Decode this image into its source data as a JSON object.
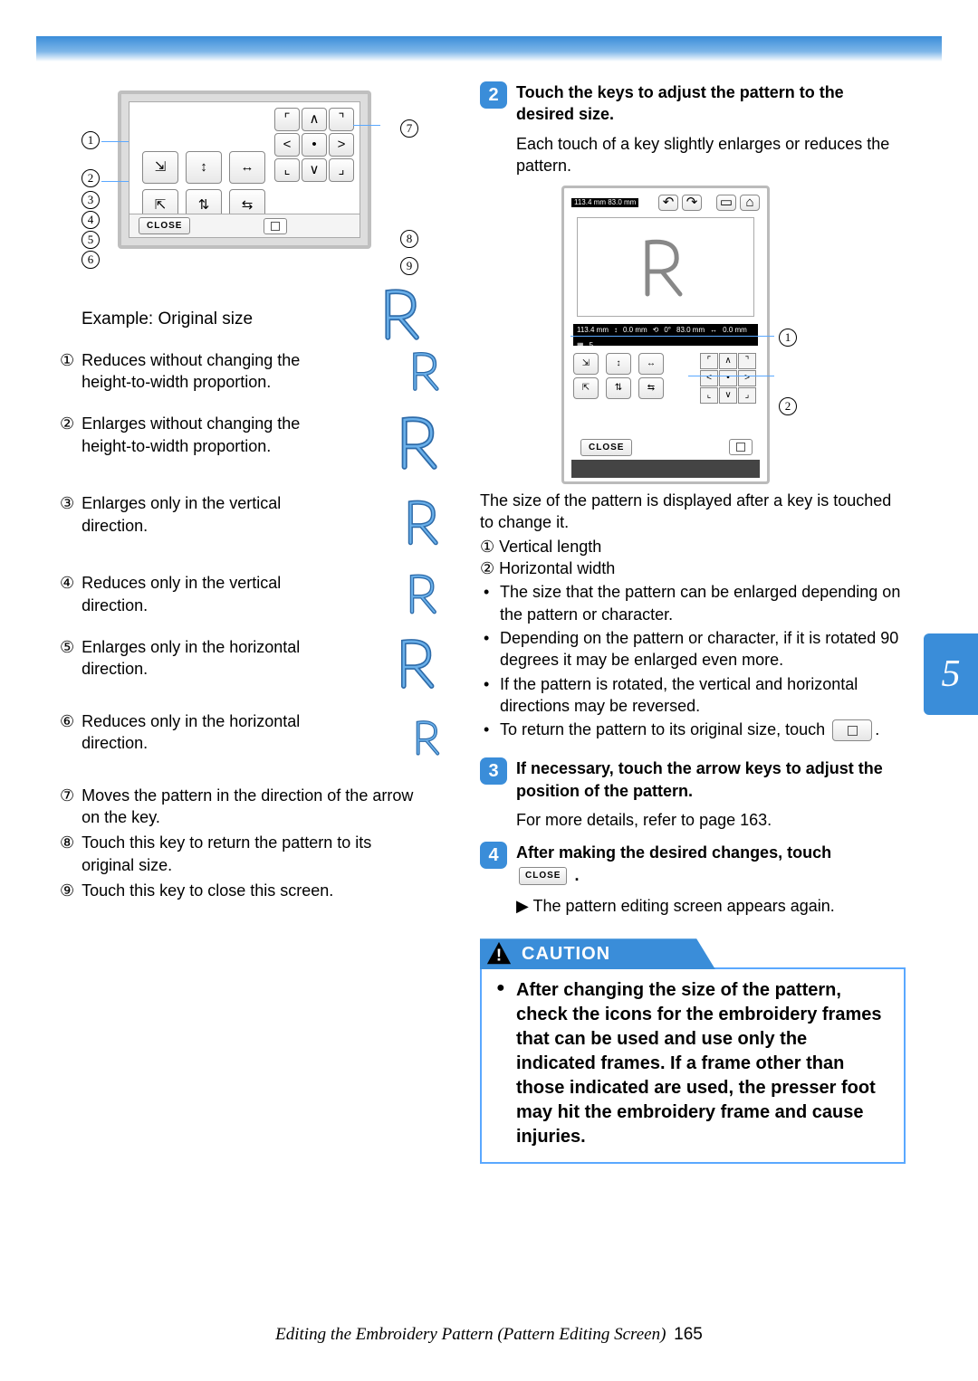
{
  "page": {
    "footer_text": "Editing the Embroidery Pattern (Pattern Editing Screen)",
    "page_number": "165",
    "chapter_tab": "5"
  },
  "left": {
    "example_label": "Example: Original size",
    "defs": [
      {
        "n": "a",
        "text": "Reduces without changing the height-to-width proportion."
      },
      {
        "n": "b",
        "text": "Enlarges without changing the height-to-width proportion."
      },
      {
        "n": "c",
        "text": "Enlarges only in the vertical direction."
      },
      {
        "n": "d",
        "text": "Reduces only in the vertical direction."
      },
      {
        "n": "e",
        "text": "Enlarges only in the horizontal direction."
      },
      {
        "n": "f",
        "text": "Reduces only in the horizontal direction."
      }
    ],
    "tail_defs": [
      {
        "n": "g",
        "text": "Moves the pattern in the direction of the arrow on the key."
      },
      {
        "n": "h",
        "text": "Touch this key to return the pattern to its original size."
      },
      {
        "n": "i",
        "text": "Touch this key to close this screen."
      }
    ],
    "diagram": {
      "left_callouts": [
        "1",
        "2",
        "3",
        "4",
        "5",
        "6"
      ],
      "right_callouts": [
        "7",
        "8",
        "9"
      ],
      "close_label": "CLOSE",
      "arrows": [
        "⌐",
        "∧",
        "¬",
        "<",
        "•",
        ">",
        "∟",
        "∨",
        "⌙"
      ]
    }
  },
  "right": {
    "step2": {
      "num": "2",
      "title": "Touch the keys to adjust the pattern to the desired size.",
      "body": "Each touch of a key slightly enlarges or reduces the pattern."
    },
    "screenshot": {
      "dims_top": "113.4 mm  83.0 mm",
      "info": [
        "113.4 mm",
        "83.0 mm",
        "0.0 mm",
        "0.0 mm",
        "0°",
        "5"
      ],
      "close_label": "CLOSE",
      "callouts": [
        "1",
        "2"
      ]
    },
    "after_screenshot": "The size of the pattern is displayed after a key is touched to change it.",
    "legend": [
      {
        "n": "a",
        "text": "Vertical length"
      },
      {
        "n": "b",
        "text": "Horizontal width"
      }
    ],
    "bullets": [
      "The size that the pattern can be enlarged depending on the pattern or character.",
      "Depending on the pattern or character, if it is rotated 90 degrees it may be enlarged even more.",
      "If the pattern is rotated, the vertical and horizontal directions may be reversed."
    ],
    "bullet_touch_prefix": "To return the pattern to its original size, touch ",
    "bullet_touch_suffix": ".",
    "step3": {
      "num": "3",
      "title": "If necessary, touch the arrow keys to adjust the position of the pattern.",
      "body": "For more details, refer to page 163."
    },
    "step4": {
      "num": "4",
      "title_prefix": "After making the desired changes, touch ",
      "title_suffix": ".",
      "close_label": "CLOSE",
      "result": "The pattern editing screen appears again."
    },
    "caution": {
      "header": "CAUTION",
      "text": "After changing the size of the pattern, check the icons for the embroidery frames that can be used and use only the indicated frames. If a frame other than those indicated are used, the presser foot may hit the embroidery frame and cause injuries."
    }
  },
  "colors": {
    "brand_blue": "#3a8dd9",
    "rule_blue": "#5aa8ff"
  }
}
